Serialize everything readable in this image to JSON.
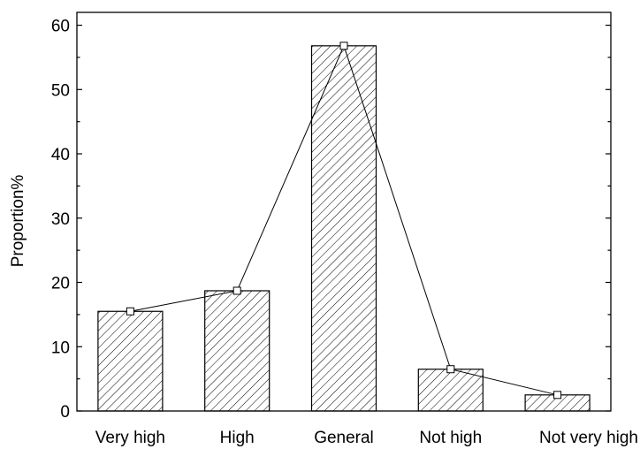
{
  "chart_data": {
    "type": "bar",
    "categories": [
      "Very high",
      "High",
      "General",
      "Not high",
      "Not very high"
    ],
    "values": [
      15.5,
      18.7,
      56.8,
      6.5,
      2.5
    ],
    "overlay_line": true,
    "title": "",
    "xlabel": "",
    "ylabel": "Proportion%",
    "ylim": [
      0,
      62
    ],
    "yticks": [
      0,
      10,
      20,
      30,
      40,
      50,
      60
    ],
    "grid": false,
    "bar_fill": "diagonal-hatch",
    "colors": {
      "stroke": "#000000",
      "marker_fill": "#ffffff",
      "background": "#ffffff"
    }
  }
}
